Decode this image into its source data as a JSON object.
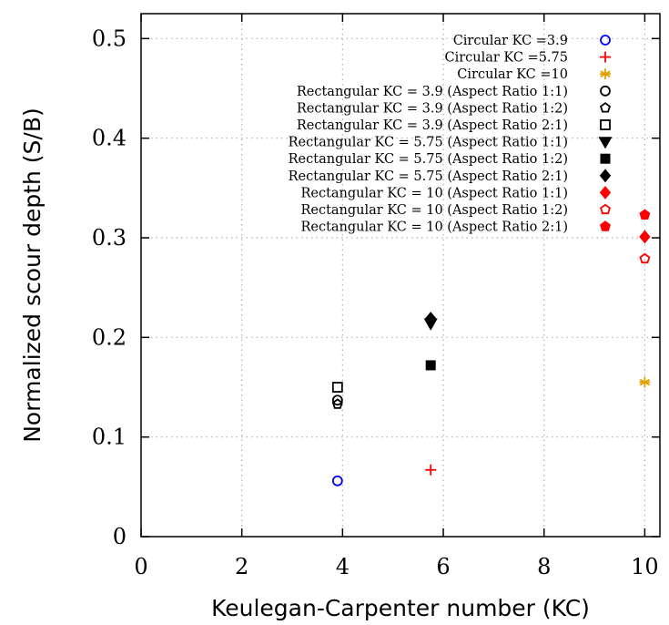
{
  "chart_data": {
    "type": "scatter",
    "xlabel": "Keulegan-Carpenter number (KC)",
    "ylabel": "Normalized scour depth (S/B)",
    "xlim": [
      0,
      10.3
    ],
    "ylim": [
      0,
      0.525
    ],
    "xticks": [
      "0",
      "2",
      "4",
      "6",
      "8",
      "10"
    ],
    "yticks": [
      "0",
      "0.1",
      "0.2",
      "0.3",
      "0.4",
      "0.5"
    ],
    "grid": "dotted, interior ticks",
    "legend_position": "top-right",
    "series": [
      {
        "name": "Circular KC =3.9",
        "color": "#0000ff",
        "marker": "circle-open",
        "points": [
          [
            3.9,
            0.056
          ]
        ]
      },
      {
        "name": "Circular KC =5.75",
        "color": "#ff0000",
        "marker": "plus",
        "points": [
          [
            5.75,
            0.067
          ]
        ]
      },
      {
        "name": "Circular KC =10",
        "color": "#e0a000",
        "marker": "asterisk",
        "points": [
          [
            10,
            0.155
          ]
        ]
      },
      {
        "name": "Rectangular KC = 3.9 (Aspect Ratio 1:1)",
        "color": "#000000",
        "marker": "circle-open",
        "points": [
          [
            3.9,
            0.137
          ]
        ]
      },
      {
        "name": "Rectangular KC = 3.9 (Aspect Ratio 1:2)",
        "color": "#000000",
        "marker": "pentagon-open",
        "points": [
          [
            3.9,
            0.133
          ]
        ]
      },
      {
        "name": "Rectangular KC = 3.9 (Aspect Ratio 2:1)",
        "color": "#000000",
        "marker": "square-open",
        "points": [
          [
            3.9,
            0.15
          ]
        ]
      },
      {
        "name": "Rectangular KC = 5.75 (Aspect Ratio 1:1)",
        "color": "#000000",
        "marker": "triangle-down-filled",
        "points": [
          [
            5.75,
            0.214
          ]
        ]
      },
      {
        "name": "Rectangular KC = 5.75 (Aspect Ratio 1:2)",
        "color": "#000000",
        "marker": "square-filled",
        "points": [
          [
            5.75,
            0.172
          ]
        ]
      },
      {
        "name": "Rectangular KC = 5.75 (Aspect Ratio 2:1)",
        "color": "#000000",
        "marker": "diamond-filled",
        "points": [
          [
            5.75,
            0.219
          ]
        ]
      },
      {
        "name": "Rectangular KC = 10 (Aspect Ratio 1:1)",
        "color": "#ff0000",
        "marker": "diamond-filled",
        "points": [
          [
            10,
            0.301
          ]
        ]
      },
      {
        "name": "Rectangular KC = 10 (Aspect Ratio 1:2)",
        "color": "#ff0000",
        "marker": "pentagon-open",
        "points": [
          [
            10,
            0.279
          ]
        ]
      },
      {
        "name": "Rectangular KC = 10 (Aspect Ratio 2:1)",
        "color": "#ff0000",
        "marker": "pentagon-filled",
        "points": [
          [
            10,
            0.323
          ]
        ]
      }
    ]
  }
}
